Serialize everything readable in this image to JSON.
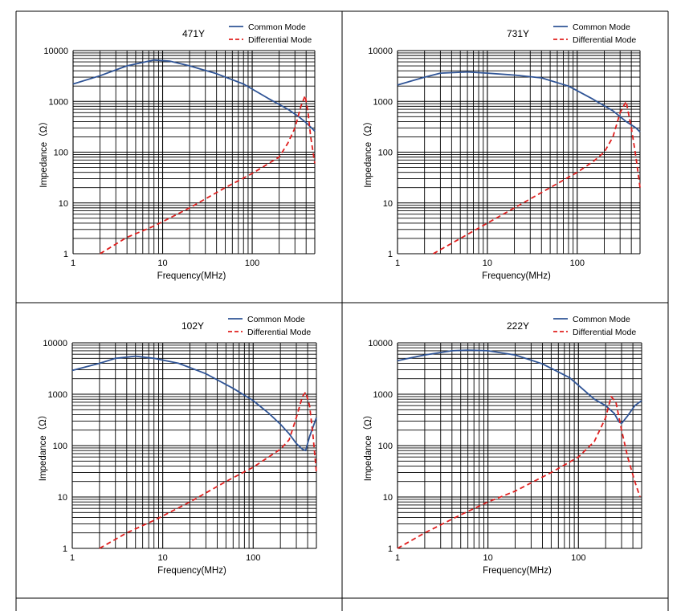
{
  "chart_data": [
    {
      "type": "line",
      "title": "471Y",
      "xlabel": "Frequency(MHz)",
      "ylabel": "Impedance（Ω）",
      "xscale": "log",
      "yscale": "log",
      "xlim": [
        1,
        500
      ],
      "ylim": [
        1,
        10000
      ],
      "grid": true,
      "legend": "top-right",
      "xticks": [
        "1",
        "10",
        "100"
      ],
      "yticks": [
        "1",
        "10",
        "100",
        "1000",
        "10000"
      ],
      "series": [
        {
          "name": "Common Mode",
          "color": "#2f5496",
          "dash": "solid",
          "x": [
            1,
            2,
            4,
            8,
            12,
            20,
            40,
            80,
            150,
            250,
            330,
            400,
            500
          ],
          "y": [
            2200,
            3200,
            5000,
            6500,
            6200,
            5000,
            3500,
            2200,
            1150,
            700,
            500,
            380,
            260
          ]
        },
        {
          "name": "Differential Mode",
          "color": "#e0201f",
          "dash": "dashed",
          "x": [
            2,
            4,
            8,
            20,
            50,
            100,
            200,
            250,
            300,
            350,
            390,
            420,
            450,
            500
          ],
          "y": [
            1,
            2.1,
            3.5,
            8,
            20,
            38,
            80,
            150,
            300,
            800,
            1300,
            600,
            200,
            60
          ]
        }
      ]
    },
    {
      "type": "line",
      "title": "731Y",
      "xlabel": "Frequency(MHz)",
      "ylabel": "Impedance（Ω）",
      "xscale": "log",
      "yscale": "log",
      "xlim": [
        1,
        500
      ],
      "ylim": [
        1,
        10000
      ],
      "grid": true,
      "legend": "top-right",
      "xticks": [
        "1",
        "10",
        "100"
      ],
      "yticks": [
        "1",
        "10",
        "100",
        "1000",
        "10000"
      ],
      "series": [
        {
          "name": "Common Mode",
          "color": "#2f5496",
          "dash": "solid",
          "x": [
            1,
            2,
            3,
            6,
            10,
            20,
            40,
            80,
            150,
            250,
            350,
            450,
            500
          ],
          "y": [
            2100,
            3000,
            3600,
            3800,
            3600,
            3300,
            2900,
            2000,
            1100,
            650,
            400,
            300,
            250
          ]
        },
        {
          "name": "Differential Mode",
          "color": "#e0201f",
          "dash": "dashed",
          "x": [
            2.5,
            5,
            10,
            20,
            50,
            100,
            150,
            200,
            250,
            300,
            350,
            400,
            450,
            500
          ],
          "y": [
            1,
            2,
            4,
            8,
            20,
            40,
            65,
            100,
            200,
            600,
            1000,
            300,
            80,
            20
          ]
        }
      ]
    },
    {
      "type": "line",
      "title": "102Y",
      "xlabel": "Frequency(MHz)",
      "ylabel": "Impedance（Ω）",
      "xscale": "log",
      "yscale": "log",
      "xlim": [
        1,
        500
      ],
      "ylim": [
        1,
        10000
      ],
      "grid": true,
      "legend": "top-right",
      "xticks": [
        "1",
        "10",
        "100"
      ],
      "yticks": [
        "1",
        "10",
        "100",
        "1000",
        "10000"
      ],
      "series": [
        {
          "name": "Common Mode",
          "color": "#2f5496",
          "dash": "solid",
          "x": [
            1,
            2,
            3,
            5,
            8,
            15,
            30,
            60,
            100,
            150,
            200,
            250,
            300,
            350,
            380,
            420,
            500
          ],
          "y": [
            2900,
            4000,
            5000,
            5500,
            5000,
            4000,
            2500,
            1300,
            750,
            420,
            260,
            170,
            110,
            85,
            80,
            150,
            350
          ]
        },
        {
          "name": "Differential Mode",
          "color": "#e0201f",
          "dash": "dashed",
          "x": [
            2,
            4,
            8,
            20,
            50,
            100,
            200,
            250,
            300,
            350,
            380,
            420,
            460,
            500
          ],
          "y": [
            1,
            2,
            3.5,
            8,
            20,
            38,
            85,
            130,
            350,
            900,
            1100,
            600,
            150,
            30
          ]
        }
      ]
    },
    {
      "type": "line",
      "title": "222Y",
      "xlabel": "Frequency(MHz)",
      "ylabel": "Impedance（Ω）",
      "xscale": "log",
      "yscale": "log",
      "xlim": [
        1,
        500
      ],
      "ylim": [
        1,
        10000
      ],
      "grid": true,
      "legend": "top-right",
      "xticks": [
        "1",
        "10",
        "100"
      ],
      "yticks": [
        "1",
        "10",
        "100",
        "1000",
        "10000"
      ],
      "series": [
        {
          "name": "Common Mode",
          "color": "#2f5496",
          "dash": "solid",
          "x": [
            1,
            2,
            4,
            6,
            10,
            20,
            40,
            80,
            150,
            200,
            250,
            280,
            300,
            350,
            420,
            500
          ],
          "y": [
            4500,
            5800,
            7000,
            7200,
            7000,
            5800,
            3900,
            2100,
            800,
            600,
            420,
            290,
            270,
            380,
            600,
            750
          ]
        },
        {
          "name": "Differential Mode",
          "color": "#e0201f",
          "dash": "dashed",
          "x": [
            1,
            2,
            5,
            10,
            20,
            50,
            100,
            150,
            200,
            230,
            260,
            300,
            350,
            420,
            480
          ],
          "y": [
            1,
            2,
            4.5,
            8,
            13,
            30,
            60,
            120,
            350,
            900,
            700,
            200,
            60,
            20,
            10
          ]
        }
      ]
    }
  ]
}
